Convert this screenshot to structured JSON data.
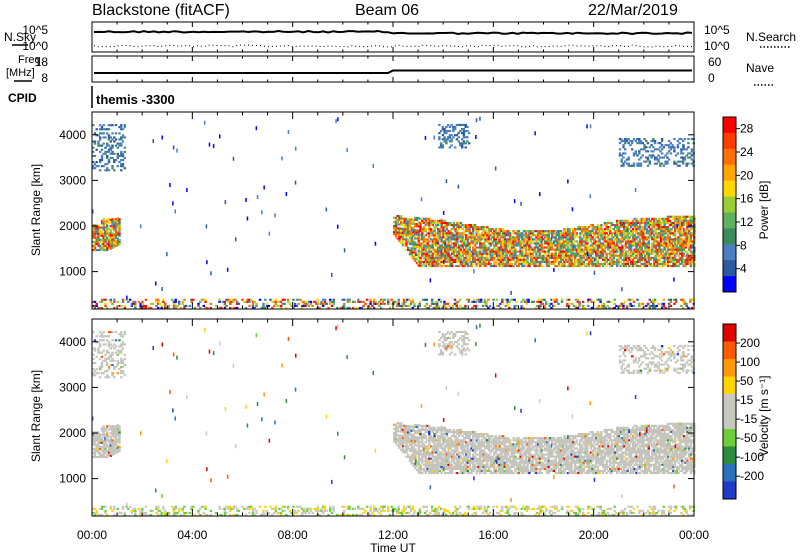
{
  "header": {
    "station": "Blackstone (fitACF)",
    "beam": "Beam 06",
    "date": "22/Mar/2019"
  },
  "colors": {
    "power_scale": [
      "#0000ff",
      "#2c5aa0",
      "#4a7fbf",
      "#3d8a5c",
      "#5fb05f",
      "#9acd32",
      "#ffd700",
      "#ffa500",
      "#ff7000",
      "#ff3b00",
      "#ff0000"
    ],
    "velocity_scale": [
      "#1e3cc8",
      "#2b6fbe",
      "#2e8a3e",
      "#6ccf3a",
      "#c8c8c0",
      "#c8c8c0",
      "#ffd400",
      "#ff9a00",
      "#ff5a00",
      "#e00000"
    ],
    "scatter_grey": "#c4c4bc"
  },
  "top_panels": {
    "nsky": {
      "label": "N.Sky",
      "right_label": "N.Search",
      "left_ticks": [
        "10^5",
        "10^0"
      ],
      "right_ticks": [
        "10^5",
        "10^0"
      ]
    },
    "freq": {
      "label_line1": "Freq.",
      "label_line2": "[MHz]",
      "right_label": "Nave",
      "left_ticks": [
        "18",
        "8"
      ],
      "right_ticks": [
        "60",
        "0"
      ]
    },
    "cpid": {
      "label": "CPID",
      "value": "themis -3300"
    }
  },
  "chart_data": [
    {
      "type": "heatmap",
      "name": "power",
      "ylabel": "Slant Range [km]",
      "yticks": [
        "1000",
        "2000",
        "3000",
        "4000"
      ],
      "ylim": [
        180,
        4500
      ],
      "xlim_hours": [
        0,
        24
      ],
      "colorbar_label": "Power [dB]",
      "colorbar_ticks": [
        "4",
        "8",
        "12",
        "16",
        "20",
        "24",
        "28"
      ],
      "colorbar_range": [
        0,
        30
      ],
      "regions": [
        {
          "t": [
            0.0,
            1.1
          ],
          "r": [
            1450,
            2150
          ],
          "level": "mixed-high"
        },
        {
          "t": [
            0.0,
            1.3
          ],
          "r": [
            3200,
            4200
          ],
          "level": "low"
        },
        {
          "t": [
            12.0,
            24.0
          ],
          "r": [
            1050,
            2300
          ],
          "level": "mixed-high"
        },
        {
          "t": [
            13.8,
            15.0
          ],
          "r": [
            3700,
            4200
          ],
          "level": "low"
        },
        {
          "t": [
            21.0,
            24.0
          ],
          "r": [
            3300,
            3900
          ],
          "level": "low"
        },
        {
          "t": [
            0.0,
            24.0
          ],
          "r": [
            180,
            400
          ],
          "level": "mixed-ground"
        }
      ]
    },
    {
      "type": "heatmap",
      "name": "velocity",
      "ylabel": "Slant Range [km]",
      "yticks": [
        "1000",
        "2000",
        "3000",
        "4000"
      ],
      "ylim": [
        180,
        4500
      ],
      "xlim_hours": [
        0,
        24
      ],
      "xticks": [
        "00:00",
        "04:00",
        "08:00",
        "12:00",
        "16:00",
        "20:00",
        "00:00"
      ],
      "xlabel": "Time UT",
      "colorbar_label": "Velocity [m s⁻¹]",
      "colorbar_ticks": [
        "200",
        "100",
        "50",
        "15",
        "-15",
        "-50",
        "-100",
        "-200"
      ],
      "colorbar_range": [
        -250,
        250
      ]
    }
  ]
}
